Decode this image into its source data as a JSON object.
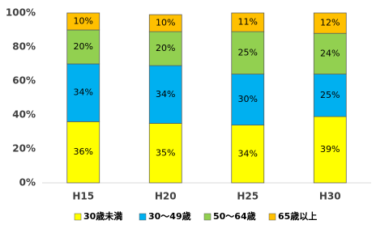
{
  "chart_data": {
    "type": "stacked_bar",
    "categories": [
      "H15",
      "H20",
      "H25",
      "H30"
    ],
    "series": [
      {
        "name": "30歳未満",
        "color": "#ffff00",
        "values": [
          36,
          35,
          34,
          39
        ],
        "value_labels": [
          "36%",
          "35%",
          "34%",
          "39%"
        ]
      },
      {
        "name": "30～49歳",
        "color": "#00b0f0",
        "values": [
          34,
          34,
          30,
          25
        ],
        "value_labels": [
          "34%",
          "34%",
          "30%",
          "25%"
        ]
      },
      {
        "name": "50～64歳",
        "color": "#92d050",
        "values": [
          20,
          20,
          25,
          24
        ],
        "value_labels": [
          "20%",
          "20%",
          "25%",
          "24%"
        ]
      },
      {
        "name": "65歳以上",
        "color": "#ffc000",
        "values": [
          10,
          10,
          11,
          12
        ],
        "value_labels": [
          "10%",
          "10%",
          "11%",
          "12%"
        ]
      }
    ],
    "ylim": [
      0,
      100
    ],
    "yticks": [
      {
        "value": 0,
        "label": "0%"
      },
      {
        "value": 20,
        "label": "20%"
      },
      {
        "value": 40,
        "label": "40%"
      },
      {
        "value": 60,
        "label": "60%"
      },
      {
        "value": 80,
        "label": "80%"
      },
      {
        "value": 100,
        "label": "100%"
      }
    ],
    "grid": false,
    "legend": "bottom"
  }
}
